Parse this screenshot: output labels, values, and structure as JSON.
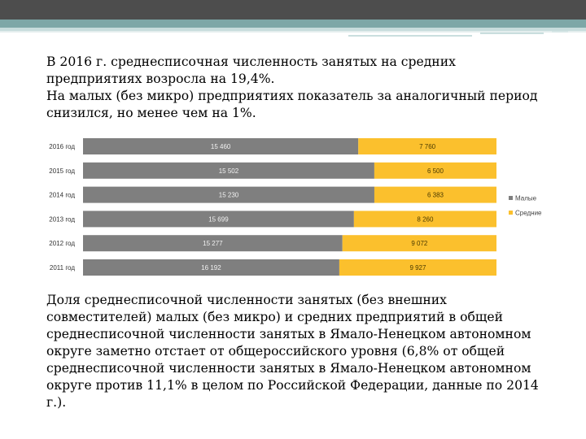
{
  "intro": {
    "line1": "В 2016 г. среднесписочная численность занятых на средних",
    "line2": "предприятиях возросла на 19,4%.",
    "line3": "На малых (без микро) предприятиях показатель за аналогичный период",
    "line4": "снизился, но менее чем на 1%."
  },
  "outro": {
    "line1": "Доля среднесписочной численности занятых (без внешних",
    "line2": "совместителей) малых (без микро) и средних предприятий в общей",
    "line3": "среднесписочной численности занятых в Ямало-Ненецком автономном",
    "line4": "округе заметно отстает от общероссийского уровня (6,8% от общей",
    "line5": "среднесписочной численности занятых в Ямало-Ненецком автономном",
    "line6": "округе против 11,1% в целом по Российской Федерации, данные по 2014",
    "line7": "г.)."
  },
  "colors": {
    "small": "#7f7f7f",
    "medium": "#fbc02d"
  },
  "chart_data": {
    "type": "bar",
    "orientation": "horizontal",
    "stacked": true,
    "categories": [
      "2016 год",
      "2015 год",
      "2014 год",
      "2013 год",
      "2012 год",
      "2011 год"
    ],
    "series": [
      {
        "name": "Малые",
        "values": [
          15460,
          15502,
          15230,
          15699,
          15277,
          16192
        ],
        "labels": [
          "15 460",
          "15 502",
          "15 230",
          "15 699",
          "15 277",
          "16 192"
        ]
      },
      {
        "name": "Средние",
        "values": [
          7760,
          6500,
          6383,
          8260,
          9072,
          9927
        ],
        "labels": [
          "7 760",
          "6 500",
          "6 383",
          "8 260",
          "9 072",
          "9 927"
        ]
      }
    ],
    "legend_position": "right",
    "title": "",
    "xlabel": "",
    "ylabel": ""
  }
}
